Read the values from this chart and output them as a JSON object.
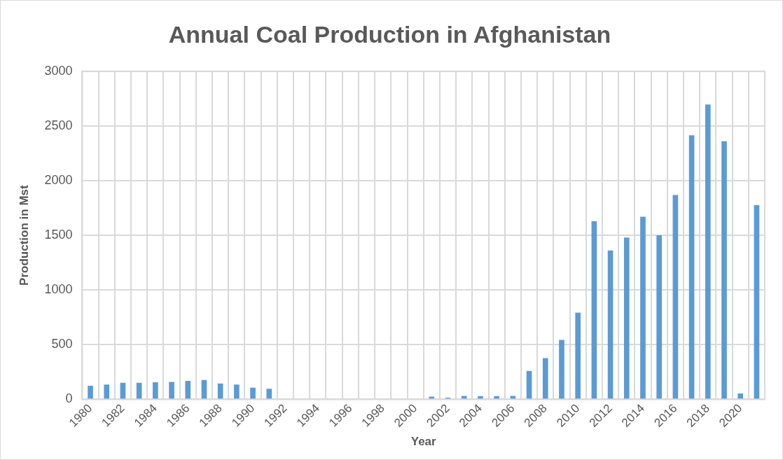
{
  "chart_data": {
    "type": "bar",
    "title": "Annual Coal Production in Afghanistan",
    "xlabel": "Year",
    "ylabel": "Production in Mst",
    "categories": [
      "1980",
      null,
      "1982",
      null,
      "1984",
      null,
      "1986",
      null,
      "1988",
      null,
      "1990",
      null,
      "1992",
      null,
      "1994",
      null,
      "1996",
      null,
      "1998",
      null,
      "2000",
      null,
      "2002",
      null,
      "2004",
      null,
      "2006",
      null,
      "2008",
      null,
      "2010",
      null,
      "2012",
      null,
      "2014",
      null,
      "2016",
      null,
      "2018",
      null,
      "2020",
      null
    ],
    "values": [
      125,
      135,
      152,
      152,
      157,
      160,
      170,
      177,
      145,
      135,
      107,
      97,
      null,
      null,
      0,
      0,
      0,
      0,
      0,
      0,
      0,
      25,
      15,
      32,
      30,
      30,
      32,
      261,
      377,
      544,
      793,
      1628,
      1362,
      1480,
      1670,
      1500,
      1869,
      2414,
      2697,
      2360,
      54,
      1776
    ],
    "color": "#5b9bd5",
    "ylim": [
      0,
      3000
    ],
    "yticks": [
      0,
      500,
      1000,
      1500,
      2000,
      2500,
      3000
    ],
    "grid": true
  }
}
